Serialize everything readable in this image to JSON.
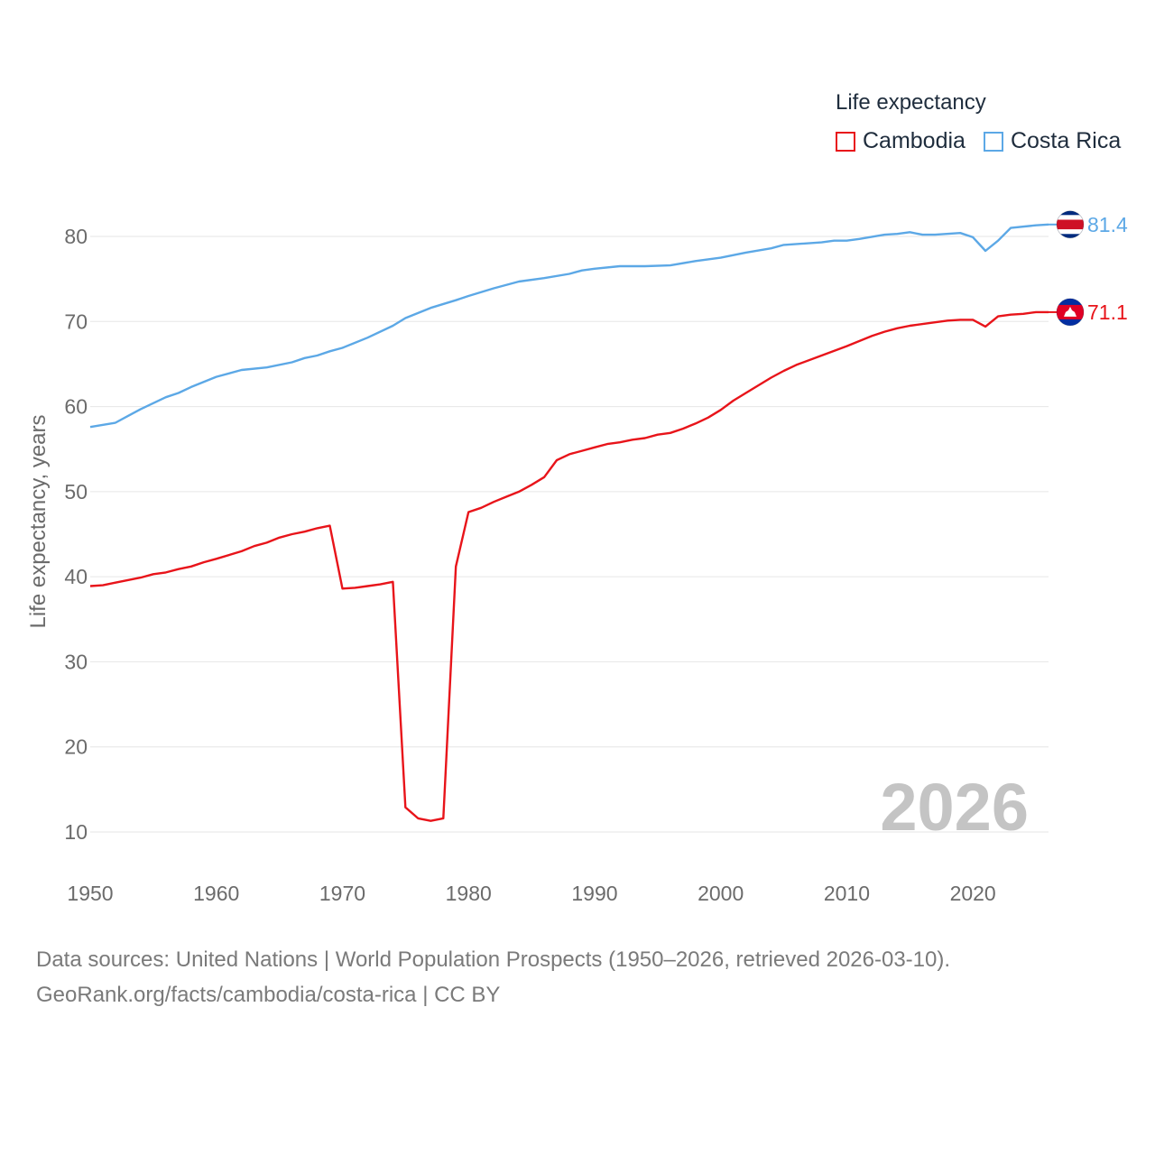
{
  "legend": {
    "title": "Life expectancy",
    "items": [
      {
        "name": "Cambodia",
        "color": "#e8141a"
      },
      {
        "name": "Costa Rica",
        "color": "#5ca8e6"
      }
    ]
  },
  "footer": {
    "line1": "Data sources: United Nations | World Population Prospects (1950–2026, retrieved 2026-03-10).",
    "line2": "GeoRank.org/facts/cambodia/costa-rica | CC BY"
  },
  "chart_data": {
    "type": "line",
    "title": "Life expectancy",
    "xlabel": "",
    "ylabel": "Life expectancy, years",
    "xlim": [
      1950,
      2026
    ],
    "ylim": [
      10,
      85
    ],
    "x_ticks": [
      1950,
      1960,
      1970,
      1980,
      1990,
      2000,
      2010,
      2020
    ],
    "y_ticks": [
      10,
      20,
      30,
      40,
      50,
      60,
      70,
      80
    ],
    "year_watermark": "2026",
    "series": [
      {
        "name": "Costa Rica",
        "color": "#5ca8e6",
        "end_label": "81.4",
        "flag": "costa-rica-flag-icon",
        "points": [
          [
            1950,
            57.6
          ],
          [
            1952,
            58.1
          ],
          [
            1953,
            58.9
          ],
          [
            1954,
            59.7
          ],
          [
            1956,
            61.1
          ],
          [
            1957,
            61.6
          ],
          [
            1958,
            62.3
          ],
          [
            1960,
            63.5
          ],
          [
            1962,
            64.3
          ],
          [
            1964,
            64.6
          ],
          [
            1966,
            65.2
          ],
          [
            1967,
            65.7
          ],
          [
            1968,
            66.0
          ],
          [
            1969,
            66.5
          ],
          [
            1970,
            66.9
          ],
          [
            1972,
            68.1
          ],
          [
            1974,
            69.5
          ],
          [
            1975,
            70.4
          ],
          [
            1977,
            71.6
          ],
          [
            1979,
            72.5
          ],
          [
            1980,
            73.0
          ],
          [
            1982,
            73.9
          ],
          [
            1984,
            74.7
          ],
          [
            1986,
            75.1
          ],
          [
            1988,
            75.6
          ],
          [
            1989,
            76.0
          ],
          [
            1990,
            76.2
          ],
          [
            1992,
            76.5
          ],
          [
            1994,
            76.5
          ],
          [
            1996,
            76.6
          ],
          [
            1998,
            77.1
          ],
          [
            2000,
            77.5
          ],
          [
            2002,
            78.1
          ],
          [
            2004,
            78.6
          ],
          [
            2005,
            79.0
          ],
          [
            2008,
            79.3
          ],
          [
            2009,
            79.5
          ],
          [
            2010,
            79.5
          ],
          [
            2011,
            79.7
          ],
          [
            2013,
            80.2
          ],
          [
            2014,
            80.3
          ],
          [
            2015,
            80.5
          ],
          [
            2016,
            80.2
          ],
          [
            2017,
            80.2
          ],
          [
            2019,
            80.4
          ],
          [
            2020,
            79.9
          ],
          [
            2021,
            78.3
          ],
          [
            2022,
            79.5
          ],
          [
            2023,
            81.0
          ],
          [
            2025,
            81.3
          ],
          [
            2026,
            81.4
          ]
        ]
      },
      {
        "name": "Cambodia",
        "color": "#e8141a",
        "end_label": "71.1",
        "flag": "cambodia-flag-icon",
        "points": [
          [
            1950,
            38.9
          ],
          [
            1951,
            39.0
          ],
          [
            1952,
            39.3
          ],
          [
            1954,
            39.9
          ],
          [
            1955,
            40.3
          ],
          [
            1956,
            40.5
          ],
          [
            1957,
            40.9
          ],
          [
            1958,
            41.2
          ],
          [
            1959,
            41.7
          ],
          [
            1960,
            42.1
          ],
          [
            1962,
            43.0
          ],
          [
            1963,
            43.6
          ],
          [
            1964,
            44.0
          ],
          [
            1965,
            44.6
          ],
          [
            1966,
            45.0
          ],
          [
            1967,
            45.3
          ],
          [
            1968,
            45.7
          ],
          [
            1969,
            46.0
          ],
          [
            1970,
            38.6
          ],
          [
            1971,
            38.7
          ],
          [
            1972,
            38.9
          ],
          [
            1973,
            39.1
          ],
          [
            1974,
            39.4
          ],
          [
            1975,
            12.9
          ],
          [
            1976,
            11.6
          ],
          [
            1977,
            11.3
          ],
          [
            1978,
            11.6
          ],
          [
            1979,
            41.2
          ],
          [
            1980,
            47.6
          ],
          [
            1981,
            48.1
          ],
          [
            1982,
            48.8
          ],
          [
            1983,
            49.4
          ],
          [
            1984,
            50.0
          ],
          [
            1985,
            50.8
          ],
          [
            1986,
            51.7
          ],
          [
            1987,
            53.7
          ],
          [
            1988,
            54.4
          ],
          [
            1989,
            54.8
          ],
          [
            1990,
            55.2
          ],
          [
            1991,
            55.6
          ],
          [
            1992,
            55.8
          ],
          [
            1993,
            56.1
          ],
          [
            1994,
            56.3
          ],
          [
            1995,
            56.7
          ],
          [
            1996,
            56.9
          ],
          [
            1997,
            57.4
          ],
          [
            1998,
            58.0
          ],
          [
            1999,
            58.7
          ],
          [
            2000,
            59.6
          ],
          [
            2001,
            60.7
          ],
          [
            2002,
            61.6
          ],
          [
            2003,
            62.5
          ],
          [
            2004,
            63.4
          ],
          [
            2005,
            64.2
          ],
          [
            2006,
            64.9
          ],
          [
            2008,
            66.0
          ],
          [
            2010,
            67.1
          ],
          [
            2012,
            68.3
          ],
          [
            2013,
            68.8
          ],
          [
            2014,
            69.2
          ],
          [
            2015,
            69.5
          ],
          [
            2017,
            69.9
          ],
          [
            2018,
            70.1
          ],
          [
            2019,
            70.2
          ],
          [
            2020,
            70.2
          ],
          [
            2021,
            69.4
          ],
          [
            2022,
            70.6
          ],
          [
            2023,
            70.8
          ],
          [
            2024,
            70.9
          ],
          [
            2025,
            71.1
          ],
          [
            2026,
            71.1
          ]
        ]
      }
    ]
  }
}
